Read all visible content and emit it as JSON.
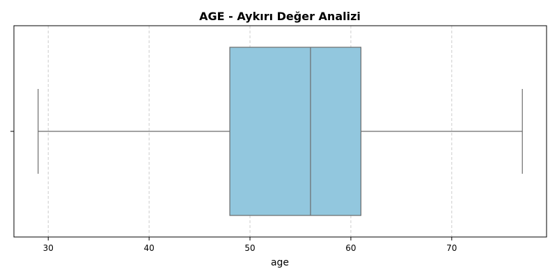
{
  "chart_data": {
    "type": "box",
    "title": "AGE - Aykırı Değer Analizi",
    "xlabel": "age",
    "ylabel": "",
    "orientation": "horizontal",
    "xlim": [
      26.6,
      79.4
    ],
    "xticks": [
      30,
      40,
      50,
      60,
      70
    ],
    "grid": "x-dashed",
    "series": [
      {
        "whisker_low": 29,
        "q1": 48,
        "median": 56,
        "q3": 61,
        "whisker_high": 77
      }
    ],
    "colors": {
      "box_fill": "#92c7de",
      "box_edge": "#6b6b6b",
      "grid": "#cccccc",
      "axis": "#000000"
    }
  }
}
